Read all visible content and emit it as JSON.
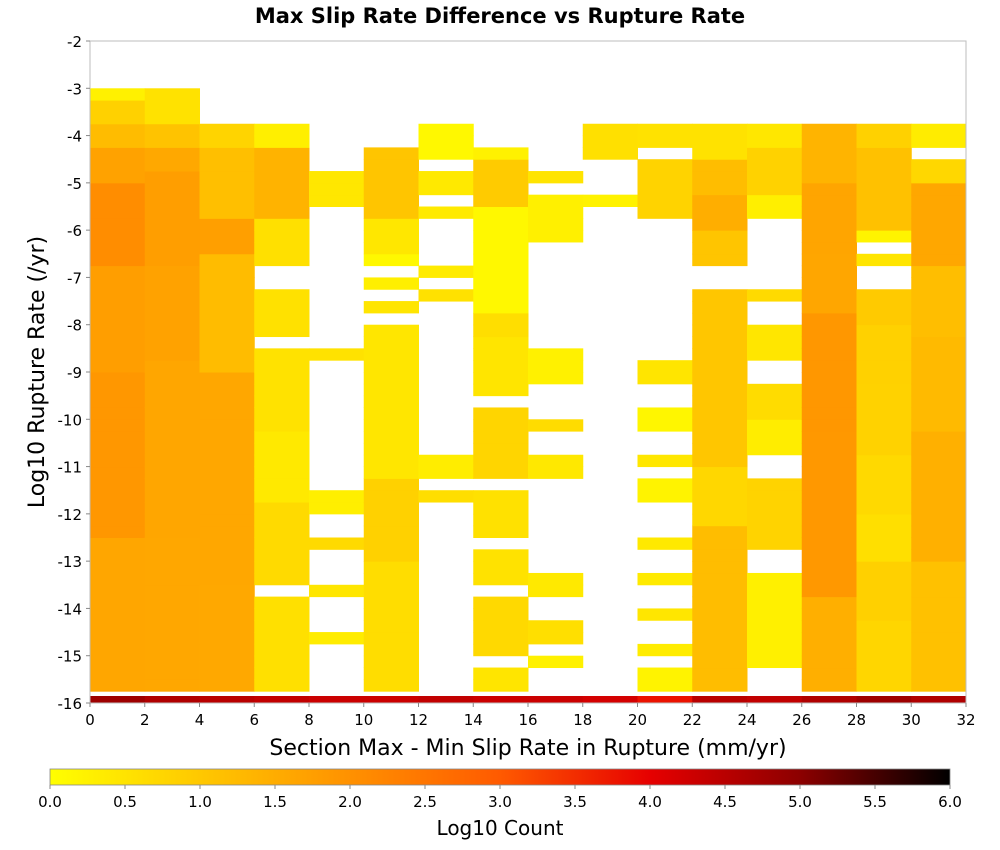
{
  "chart_data": {
    "type": "heatmap",
    "title": "Max Slip Rate Difference vs Rupture Rate",
    "xlabel": "Section Max - Min Slip Rate in Rupture (mm/yr)",
    "ylabel": "Log10 Rupture Rate (/yr)",
    "xlim": [
      0,
      32
    ],
    "ylim": [
      -16,
      -2
    ],
    "x_ticks": [
      "0",
      "2",
      "4",
      "6",
      "8",
      "10",
      "12",
      "14",
      "16",
      "18",
      "20",
      "22",
      "24",
      "26",
      "28",
      "30",
      "32"
    ],
    "y_ticks": [
      "-2",
      "-3",
      "-4",
      "-5",
      "-6",
      "-7",
      "-8",
      "-9",
      "-10",
      "-11",
      "-12",
      "-13",
      "-14",
      "-15",
      "-16"
    ],
    "colorbar": {
      "label": "Log10 Count",
      "range": [
        0,
        6
      ],
      "ticks": [
        "0.0",
        "0.5",
        "1.0",
        "1.5",
        "2.0",
        "2.5",
        "3.0",
        "3.5",
        "4.0",
        "4.5",
        "5.0",
        "5.5",
        "6.0"
      ],
      "colors": [
        "#ffff00",
        "#ffc800",
        "#ff9100",
        "#ff5a00",
        "#e60000",
        "#8c0000",
        "#000000"
      ]
    },
    "x_bin_width": 2,
    "y_bin_height": 0.25,
    "bottom_row_rate": -16,
    "bottom_row_values": [
      4.8,
      4.6,
      4.5,
      4.4,
      4.3,
      4.3,
      4.4,
      4.3,
      4.3,
      4.2,
      3.8,
      4.5,
      4.4,
      4.6,
      4.8,
      4.6,
      4.5
    ],
    "columns": [
      {
        "x": [
          0,
          2
        ],
        "ranges": [
          [
            -15.75,
            -12.5,
            1.7
          ],
          [
            -12.5,
            -9.0,
            1.85
          ],
          [
            -9.0,
            -6.75,
            1.8
          ],
          [
            -6.75,
            -5.0,
            2.0
          ],
          [
            -5.0,
            -4.25,
            1.7
          ],
          [
            -4.25,
            -3.75,
            1.3
          ],
          [
            -3.75,
            -3.25,
            0.8
          ],
          [
            -3.25,
            -3.0,
            0.3
          ]
        ]
      },
      {
        "x": [
          2,
          4
        ],
        "ranges": [
          [
            -15.75,
            -12.5,
            1.6
          ],
          [
            -12.5,
            -8.75,
            1.7
          ],
          [
            -8.75,
            -6.75,
            1.65
          ],
          [
            -6.75,
            -4.75,
            1.8
          ],
          [
            -4.75,
            -4.25,
            1.5
          ],
          [
            -4.25,
            -3.75,
            1.1
          ],
          [
            -3.75,
            -3.0,
            0.6
          ]
        ]
      },
      {
        "x": [
          4,
          6
        ],
        "ranges": [
          [
            -15.75,
            -13.5,
            1.5
          ],
          [
            -13.5,
            -9.0,
            1.6
          ],
          [
            -9.0,
            -6.5,
            1.3
          ],
          [
            -6.5,
            -5.75,
            1.7
          ],
          [
            -5.75,
            -4.25,
            1.2
          ],
          [
            -4.25,
            -3.75,
            0.7
          ]
        ]
      },
      {
        "x": [
          6,
          8
        ],
        "ranges": [
          [
            -15.75,
            -13.75,
            0.6
          ],
          [
            -13.5,
            -11.75,
            0.6
          ],
          [
            -11.75,
            -10.25,
            0.4
          ],
          [
            -10.25,
            -8.5,
            0.6
          ],
          [
            -8.25,
            -7.25,
            0.5
          ],
          [
            -6.75,
            -5.75,
            0.6
          ],
          [
            -5.75,
            -4.25,
            1.3
          ],
          [
            -4.25,
            -3.75,
            0.3
          ]
        ]
      },
      {
        "x": [
          8,
          10
        ],
        "ranges": [
          [
            -14.75,
            -14.5,
            0.3
          ],
          [
            -13.75,
            -13.5,
            0.5
          ],
          [
            -12.75,
            -12.5,
            0.6
          ],
          [
            -12.0,
            -11.5,
            0.3
          ],
          [
            -8.75,
            -8.5,
            0.6
          ],
          [
            -5.5,
            -4.75,
            0.4
          ]
        ]
      },
      {
        "x": [
          10,
          12
        ],
        "ranges": [
          [
            -15.75,
            -13.0,
            0.7
          ],
          [
            -13.0,
            -11.25,
            0.8
          ],
          [
            -11.25,
            -8.0,
            0.5
          ],
          [
            -7.75,
            -7.5,
            0.4
          ],
          [
            -7.25,
            -7.0,
            0.3
          ],
          [
            -6.75,
            -6.5,
            0.2
          ],
          [
            -6.5,
            -5.75,
            0.4
          ],
          [
            -5.75,
            -4.25,
            1.1
          ]
        ]
      },
      {
        "x": [
          12,
          14
        ],
        "ranges": [
          [
            -11.75,
            -11.5,
            0.6
          ],
          [
            -11.25,
            -10.75,
            0.4
          ],
          [
            -7.5,
            -7.25,
            0.5
          ],
          [
            -7.0,
            -6.75,
            0.4
          ],
          [
            -5.75,
            -5.5,
            0.3
          ],
          [
            -5.25,
            -4.75,
            0.4
          ],
          [
            -4.5,
            -3.75,
            0.2
          ]
        ]
      },
      {
        "x": [
          14,
          16
        ],
        "ranges": [
          [
            -15.75,
            -15.25,
            0.4
          ],
          [
            -15.0,
            -13.75,
            0.7
          ],
          [
            -13.5,
            -12.75,
            0.6
          ],
          [
            -12.5,
            -11.5,
            0.5
          ],
          [
            -11.25,
            -9.75,
            0.8
          ],
          [
            -9.5,
            -8.25,
            0.4
          ],
          [
            -8.25,
            -7.75,
            0.6
          ],
          [
            -7.75,
            -5.5,
            0.2
          ],
          [
            -5.5,
            -4.5,
            0.9
          ],
          [
            -4.5,
            -4.25,
            0.3
          ]
        ]
      },
      {
        "x": [
          16,
          18
        ],
        "ranges": [
          [
            -15.25,
            -15.0,
            0.3
          ],
          [
            -14.75,
            -14.25,
            0.5
          ],
          [
            -13.75,
            -13.25,
            0.4
          ],
          [
            -11.25,
            -10.75,
            0.5
          ],
          [
            -10.25,
            -10.0,
            0.6
          ],
          [
            -9.25,
            -8.5,
            0.3
          ],
          [
            -6.25,
            -5.25,
            0.2
          ],
          [
            -5.0,
            -4.75,
            0.5
          ]
        ]
      },
      {
        "x": [
          18,
          20
        ],
        "ranges": [
          [
            -5.5,
            -5.25,
            0.2
          ],
          [
            -4.5,
            -3.75,
            0.6
          ]
        ]
      },
      {
        "x": [
          20,
          22
        ],
        "ranges": [
          [
            -15.75,
            -15.25,
            0.3
          ],
          [
            -15.0,
            -14.75,
            0.3
          ],
          [
            -14.25,
            -14.0,
            0.5
          ],
          [
            -13.5,
            -13.25,
            0.3
          ],
          [
            -12.75,
            -12.5,
            0.4
          ],
          [
            -11.75,
            -11.25,
            0.3
          ],
          [
            -11.0,
            -10.75,
            0.4
          ],
          [
            -10.25,
            -9.75,
            0.2
          ],
          [
            -9.25,
            -8.75,
            0.4
          ],
          [
            -5.75,
            -4.5,
            0.8
          ],
          [
            -4.25,
            -3.75,
            0.6
          ]
        ]
      },
      {
        "x": [
          22,
          24
        ],
        "ranges": [
          [
            -15.75,
            -12.25,
            1.2
          ],
          [
            -12.25,
            -11.0,
            0.8
          ],
          [
            -11.0,
            -7.25,
            1.0
          ],
          [
            -6.75,
            -6.0,
            1.1
          ],
          [
            -6.0,
            -5.25,
            1.4
          ],
          [
            -5.25,
            -4.5,
            1.2
          ],
          [
            -4.5,
            -3.75,
            0.6
          ]
        ]
      },
      {
        "x": [
          24,
          26
        ],
        "ranges": [
          [
            -15.25,
            -13.25,
            0.2
          ],
          [
            -12.75,
            -11.25,
            0.8
          ],
          [
            -10.75,
            -10.0,
            0.4
          ],
          [
            -10.0,
            -9.25,
            0.6
          ],
          [
            -8.75,
            -8.0,
            0.5
          ],
          [
            -7.5,
            -7.25,
            0.6
          ],
          [
            -5.75,
            -5.25,
            0.3
          ],
          [
            -5.25,
            -4.25,
            0.9
          ],
          [
            -4.25,
            -3.75,
            0.4
          ]
        ]
      },
      {
        "x": [
          26,
          28
        ],
        "ranges": [
          [
            -15.75,
            -13.75,
            1.5
          ],
          [
            -13.75,
            -10.25,
            1.8
          ],
          [
            -10.25,
            -7.75,
            1.9
          ],
          [
            -7.75,
            -6.5,
            1.7
          ],
          [
            -6.5,
            -5.0,
            1.6
          ],
          [
            -5.0,
            -3.75,
            1.4
          ]
        ]
      },
      {
        "x": [
          28,
          30
        ],
        "ranges": [
          [
            -15.75,
            -14.25,
            0.7
          ],
          [
            -14.25,
            -13.0,
            0.9
          ],
          [
            -13.0,
            -12.0,
            0.5
          ],
          [
            -12.0,
            -10.75,
            0.7
          ],
          [
            -10.75,
            -9.25,
            0.9
          ],
          [
            -9.25,
            -8.0,
            0.8
          ],
          [
            -8.0,
            -7.25,
            1.0
          ],
          [
            -6.75,
            -6.5,
            0.4
          ],
          [
            -6.25,
            -6.0,
            0.2
          ],
          [
            -6.0,
            -4.25,
            1.2
          ],
          [
            -4.25,
            -3.75,
            0.8
          ]
        ]
      },
      {
        "x": [
          30,
          32
        ],
        "ranges": [
          [
            -15.75,
            -13.0,
            1.2
          ],
          [
            -13.0,
            -10.25,
            1.4
          ],
          [
            -10.25,
            -8.25,
            1.3
          ],
          [
            -8.25,
            -6.75,
            1.1
          ],
          [
            -6.75,
            -5.0,
            1.6
          ],
          [
            -5.0,
            -4.5,
            0.8
          ],
          [
            -4.25,
            -3.75,
            0.3
          ]
        ]
      }
    ]
  }
}
